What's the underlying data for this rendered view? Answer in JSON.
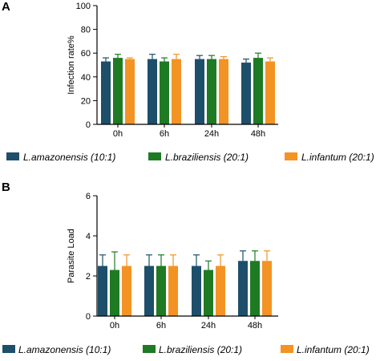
{
  "colors": {
    "amazonensis": "#1d4f6b",
    "braziliensis": "#1e7a23",
    "infantum": "#f39324",
    "axis": "#000000",
    "error": "#555555"
  },
  "chart_data": [
    {
      "type": "bar",
      "panel": "A",
      "ylabel": "Infection rate%",
      "xlabel": "",
      "categories": [
        "0h",
        "6h",
        "24h",
        "48h"
      ],
      "ylim": [
        0,
        100
      ],
      "yticks": [
        0,
        20,
        40,
        60,
        80,
        100
      ],
      "legend_position": "bottom",
      "series": [
        {
          "name": "L.amazonensis (10:1)",
          "color_key": "amazonensis",
          "values": [
            53,
            55,
            55,
            52
          ],
          "errors": [
            3,
            4,
            3,
            3
          ]
        },
        {
          "name": "L.braziliensis (20:1)",
          "color_key": "braziliensis",
          "values": [
            56,
            53,
            55,
            56
          ],
          "errors": [
            3,
            3,
            3,
            4
          ]
        },
        {
          "name": "L.infantum (20:1)",
          "color_key": "infantum",
          "values": [
            55,
            55,
            55,
            53
          ],
          "errors": [
            1,
            4,
            2,
            3
          ]
        }
      ]
    },
    {
      "type": "bar",
      "panel": "B",
      "ylabel": "Parasite Load",
      "xlabel": "",
      "categories": [
        "0h",
        "6h",
        "24h",
        "48h"
      ],
      "ylim": [
        0,
        6
      ],
      "yticks": [
        0,
        2,
        4,
        6
      ],
      "legend_position": "bottom",
      "series": [
        {
          "name": "L.amazonensis (10:1)",
          "color_key": "amazonensis",
          "values": [
            2.5,
            2.5,
            2.5,
            2.75
          ],
          "errors": [
            0.55,
            0.55,
            0.55,
            0.5
          ]
        },
        {
          "name": "L.braziliensis (20:1)",
          "color_key": "braziliensis",
          "values": [
            2.3,
            2.5,
            2.3,
            2.75
          ],
          "errors": [
            0.9,
            0.55,
            0.45,
            0.5
          ]
        },
        {
          "name": "L.infantum (20:1)",
          "color_key": "infantum",
          "values": [
            2.5,
            2.5,
            2.5,
            2.75
          ],
          "errors": [
            0.55,
            0.55,
            0.55,
            0.5
          ]
        }
      ]
    }
  ]
}
